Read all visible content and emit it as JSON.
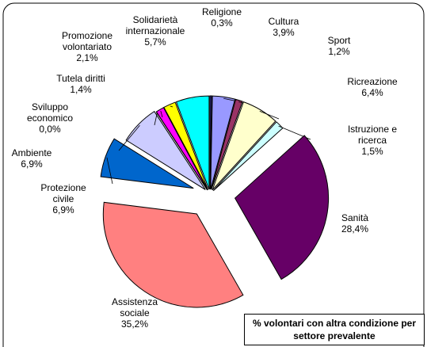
{
  "chart_data": {
    "type": "pie",
    "title": "% volontari con altra condizione per settore prevalente",
    "categories": [
      "Religione",
      "Cultura",
      "Sport",
      "Ricreazione",
      "Istruzione e ricerca",
      "Sanità",
      "Assistenza sociale",
      "Protezione civile",
      "Ambiente",
      "Sviluppo economico",
      "Tutela diritti",
      "Promozione volontariato",
      "Solidarietà internazionale"
    ],
    "values": [
      0.3,
      3.9,
      1.2,
      6.4,
      1.5,
      28.4,
      35.2,
      6.9,
      6.9,
      0.0,
      1.4,
      2.1,
      5.7
    ],
    "value_labels": [
      "0,3%",
      "3,9%",
      "1,2%",
      "6,4%",
      "1,5%",
      "28,4%",
      "35,2%",
      "6,9%",
      "6,9%",
      "0,0%",
      "1,4%",
      "2,1%",
      "5,7%"
    ],
    "colors": [
      "#333399",
      "#9999ff",
      "#993366",
      "#ffffcc",
      "#ccffff",
      "#660066",
      "#ff8080",
      "#0066cc",
      "#ccccff",
      "#ffffff",
      "#ff00ff",
      "#ffff00",
      "#00ffff"
    ]
  }
}
